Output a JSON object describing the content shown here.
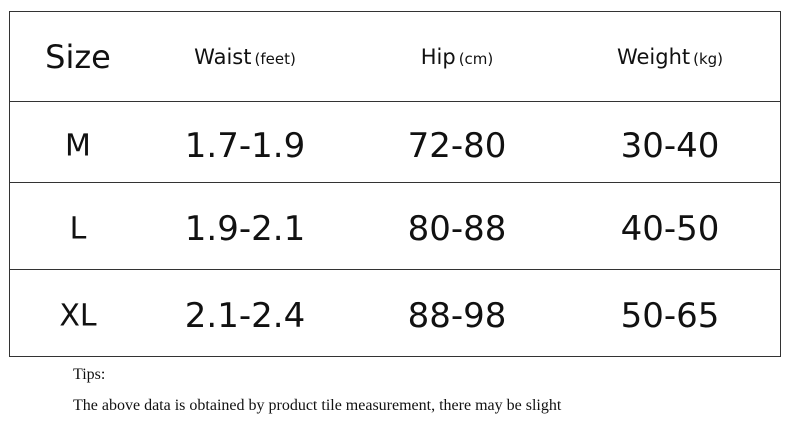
{
  "table": {
    "header": [
      {
        "label": "Size"
      },
      {
        "label": "Waist",
        "unit": "(feet)"
      },
      {
        "label": "Hip",
        "unit": "(cm)"
      },
      {
        "label": "Weight",
        "unit": "(kg)"
      }
    ],
    "rows": [
      [
        "M",
        "1.7-1.9",
        "72-80",
        "30-40"
      ],
      [
        "L",
        "1.9-2.1",
        "80-88",
        "40-50"
      ],
      [
        "XL",
        "2.1-2.4",
        "88-98",
        "50-65"
      ]
    ]
  },
  "notes": {
    "title": "Tips:",
    "text": "The above data is obtained by product tile measurement, there may be slight"
  }
}
